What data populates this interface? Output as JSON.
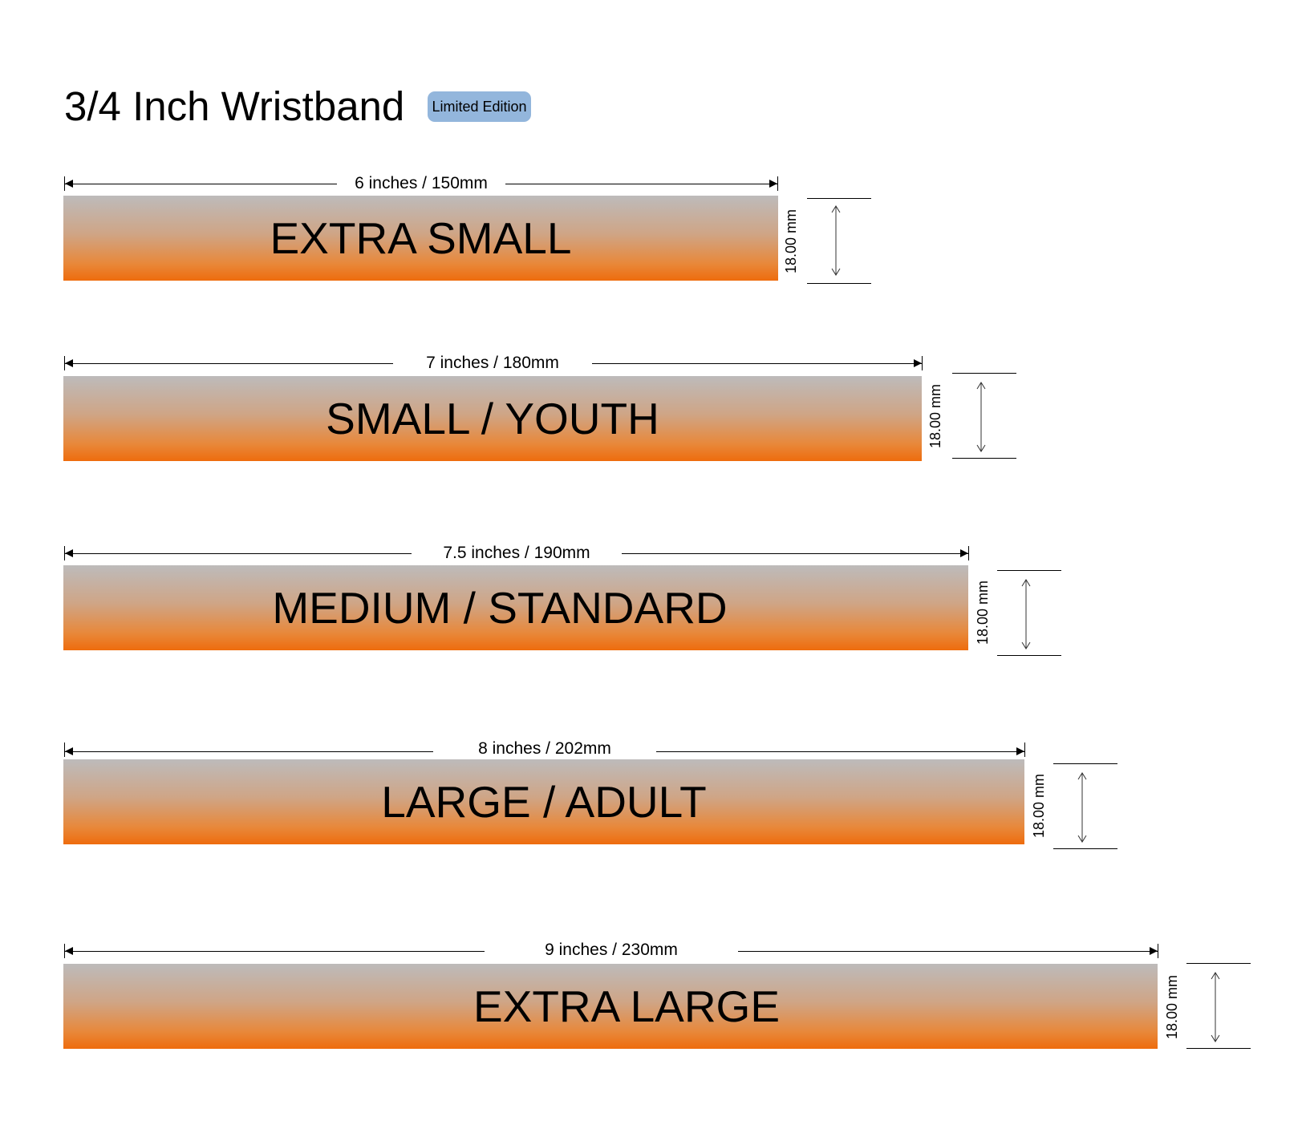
{
  "header": {
    "title": "3/4 Inch Wristband",
    "badge": "Limited Edition",
    "badge_color": "#93b6dc"
  },
  "gradient_colors": {
    "top": "#bdbbbb",
    "bottom": "#ee6c0d"
  },
  "bands": [
    {
      "name": "EXTRA SMALL",
      "length_label": "6 inches / 150mm",
      "length_in": 6,
      "length_mm": 150,
      "height_label": "18.00 mm"
    },
    {
      "name": "SMALL / YOUTH",
      "length_label": "7 inches / 180mm",
      "length_in": 7,
      "length_mm": 180,
      "height_label": "18.00 mm"
    },
    {
      "name": "MEDIUM / STANDARD",
      "length_label": "7.5 inches / 190mm",
      "length_in": 7.5,
      "length_mm": 190,
      "height_label": "18.00 mm"
    },
    {
      "name": "LARGE / ADULT",
      "length_label": "8 inches / 202mm",
      "length_in": 8,
      "length_mm": 202,
      "height_label": "18.00 mm"
    },
    {
      "name": "EXTRA LARGE",
      "length_label": "9 inches / 230mm",
      "length_in": 9,
      "length_mm": 230,
      "height_label": "18.00 mm"
    }
  ]
}
